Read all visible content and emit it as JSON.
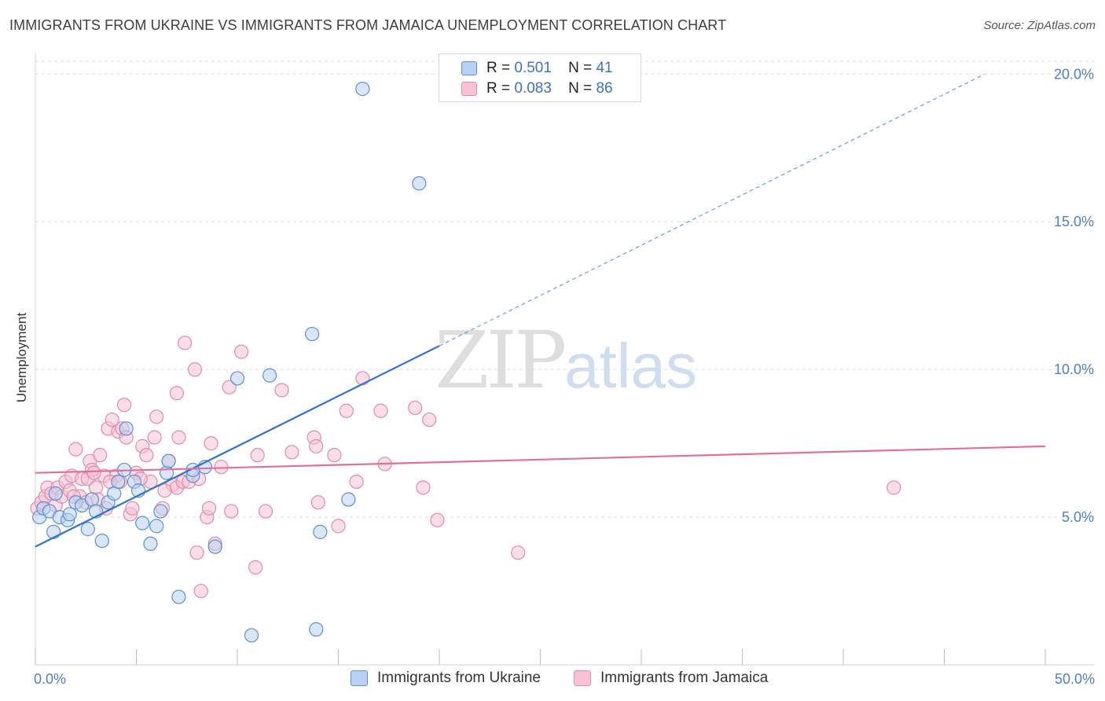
{
  "title": "IMMIGRANTS FROM UKRAINE VS IMMIGRANTS FROM JAMAICA UNEMPLOYMENT CORRELATION CHART",
  "source": "Source: ZipAtlas.com",
  "watermark": {
    "zip": "ZIP",
    "atlas": "atlas"
  },
  "legend": {
    "ukraine": {
      "r_label": "R =",
      "r_value": "0.501",
      "n_label": "N =",
      "n_value": "41"
    },
    "jamaica": {
      "r_label": "R =",
      "r_value": "0.083",
      "n_label": "N =",
      "n_value": "86"
    }
  },
  "colors": {
    "ukraine_fill": "#b9d2f3",
    "ukraine_stroke": "#5b8fd6",
    "ukraine_line": "#2f73cf",
    "jamaica_fill": "#f7c3d4",
    "jamaica_stroke": "#e38aa8",
    "jamaica_line": "#e0709a",
    "tick": "#4f80c8",
    "grid": "#dcdcdc"
  },
  "chart_data": {
    "type": "scatter",
    "title": "IMMIGRANTS FROM UKRAINE VS IMMIGRANTS FROM JAMAICA UNEMPLOYMENT CORRELATION CHART",
    "xlabel": "",
    "ylabel": "Unemployment",
    "xlim": [
      0,
      50
    ],
    "ylim": [
      0,
      20.7
    ],
    "x_tick_labels": [
      "0.0%",
      "50.0%"
    ],
    "y_ticks": [
      5,
      10,
      15,
      20
    ],
    "y_tick_labels": [
      "5.0%",
      "10.0%",
      "15.0%",
      "20.0%"
    ],
    "legend_position": "top-center",
    "series": [
      {
        "name": "Immigrants from Ukraine",
        "trend": {
          "x0": 0,
          "y0": 4.0,
          "x1": 20,
          "y1": 10.8,
          "dashed_to_x": 47,
          "dashed_to_y": 20.0
        },
        "points": [
          [
            0.2,
            5.0
          ],
          [
            0.4,
            5.3
          ],
          [
            0.7,
            5.2
          ],
          [
            0.9,
            4.5
          ],
          [
            1.0,
            5.8
          ],
          [
            1.2,
            5.0
          ],
          [
            1.6,
            4.9
          ],
          [
            1.7,
            5.1
          ],
          [
            2.0,
            5.5
          ],
          [
            2.3,
            5.4
          ],
          [
            2.6,
            4.6
          ],
          [
            2.8,
            5.6
          ],
          [
            3.0,
            5.2
          ],
          [
            3.3,
            4.2
          ],
          [
            3.6,
            5.5
          ],
          [
            3.9,
            5.8
          ],
          [
            4.1,
            6.2
          ],
          [
            4.4,
            6.6
          ],
          [
            4.5,
            8.0
          ],
          [
            4.9,
            6.2
          ],
          [
            5.1,
            5.9
          ],
          [
            5.3,
            4.8
          ],
          [
            5.7,
            4.1
          ],
          [
            6.0,
            4.7
          ],
          [
            6.2,
            5.2
          ],
          [
            6.5,
            6.5
          ],
          [
            6.6,
            6.9
          ],
          [
            7.1,
            2.3
          ],
          [
            7.8,
            6.4
          ],
          [
            7.8,
            6.6
          ],
          [
            8.4,
            6.7
          ],
          [
            8.9,
            4.0
          ],
          [
            10.0,
            9.7
          ],
          [
            10.7,
            1.0
          ],
          [
            11.6,
            9.8
          ],
          [
            13.7,
            11.2
          ],
          [
            13.9,
            1.2
          ],
          [
            14.1,
            4.5
          ],
          [
            15.5,
            5.6
          ],
          [
            16.2,
            19.5
          ],
          [
            19.0,
            16.3
          ]
        ]
      },
      {
        "name": "Immigrants from Jamaica",
        "trend": {
          "x0": 0,
          "y0": 6.5,
          "x1": 50,
          "y1": 7.4
        },
        "points": [
          [
            0.1,
            5.3
          ],
          [
            0.3,
            5.5
          ],
          [
            0.5,
            5.7
          ],
          [
            0.6,
            6.0
          ],
          [
            0.8,
            5.8
          ],
          [
            1.0,
            5.4
          ],
          [
            1.1,
            6.0
          ],
          [
            1.3,
            5.7
          ],
          [
            1.5,
            6.2
          ],
          [
            1.7,
            5.9
          ],
          [
            1.8,
            6.4
          ],
          [
            2.0,
            7.3
          ],
          [
            2.2,
            5.7
          ],
          [
            2.3,
            6.3
          ],
          [
            2.5,
            5.5
          ],
          [
            2.6,
            6.3
          ],
          [
            2.7,
            6.9
          ],
          [
            2.8,
            6.6
          ],
          [
            3.0,
            6.0
          ],
          [
            3.1,
            5.6
          ],
          [
            3.2,
            7.1
          ],
          [
            3.4,
            6.4
          ],
          [
            3.5,
            5.3
          ],
          [
            3.6,
            8.0
          ],
          [
            3.8,
            8.3
          ],
          [
            4.0,
            6.4
          ],
          [
            4.1,
            7.9
          ],
          [
            4.2,
            6.2
          ],
          [
            4.3,
            8.0
          ],
          [
            4.4,
            8.8
          ],
          [
            4.5,
            7.7
          ],
          [
            4.7,
            5.1
          ],
          [
            4.8,
            5.3
          ],
          [
            5.0,
            6.5
          ],
          [
            5.3,
            7.4
          ],
          [
            5.5,
            7.1
          ],
          [
            5.7,
            6.2
          ],
          [
            5.9,
            7.7
          ],
          [
            6.0,
            8.4
          ],
          [
            6.3,
            5.3
          ],
          [
            6.6,
            6.9
          ],
          [
            6.8,
            6.1
          ],
          [
            7.0,
            6.0
          ],
          [
            7.0,
            9.2
          ],
          [
            7.1,
            7.7
          ],
          [
            7.3,
            6.2
          ],
          [
            7.4,
            10.9
          ],
          [
            7.6,
            6.2
          ],
          [
            7.9,
            10.0
          ],
          [
            8.0,
            3.8
          ],
          [
            8.1,
            6.3
          ],
          [
            8.5,
            5.0
          ],
          [
            8.6,
            5.3
          ],
          [
            8.7,
            7.5
          ],
          [
            8.9,
            4.1
          ],
          [
            9.2,
            6.7
          ],
          [
            9.6,
            9.4
          ],
          [
            9.7,
            5.2
          ],
          [
            10.2,
            10.6
          ],
          [
            10.9,
            3.3
          ],
          [
            11.0,
            7.1
          ],
          [
            11.4,
            5.2
          ],
          [
            12.2,
            9.3
          ],
          [
            12.7,
            7.2
          ],
          [
            13.8,
            7.7
          ],
          [
            13.9,
            7.4
          ],
          [
            14.0,
            5.5
          ],
          [
            14.8,
            7.1
          ],
          [
            15.0,
            4.7
          ],
          [
            15.4,
            8.6
          ],
          [
            15.9,
            6.2
          ],
          [
            16.2,
            9.7
          ],
          [
            17.1,
            8.6
          ],
          [
            17.3,
            6.8
          ],
          [
            18.8,
            8.7
          ],
          [
            19.2,
            6.0
          ],
          [
            19.5,
            8.3
          ],
          [
            19.9,
            4.9
          ],
          [
            23.9,
            3.8
          ],
          [
            42.5,
            6.0
          ],
          [
            8.2,
            2.5
          ],
          [
            1.9,
            5.7
          ],
          [
            6.4,
            5.9
          ],
          [
            5.2,
            6.3
          ],
          [
            3.7,
            6.2
          ],
          [
            2.9,
            6.5
          ]
        ]
      }
    ]
  }
}
